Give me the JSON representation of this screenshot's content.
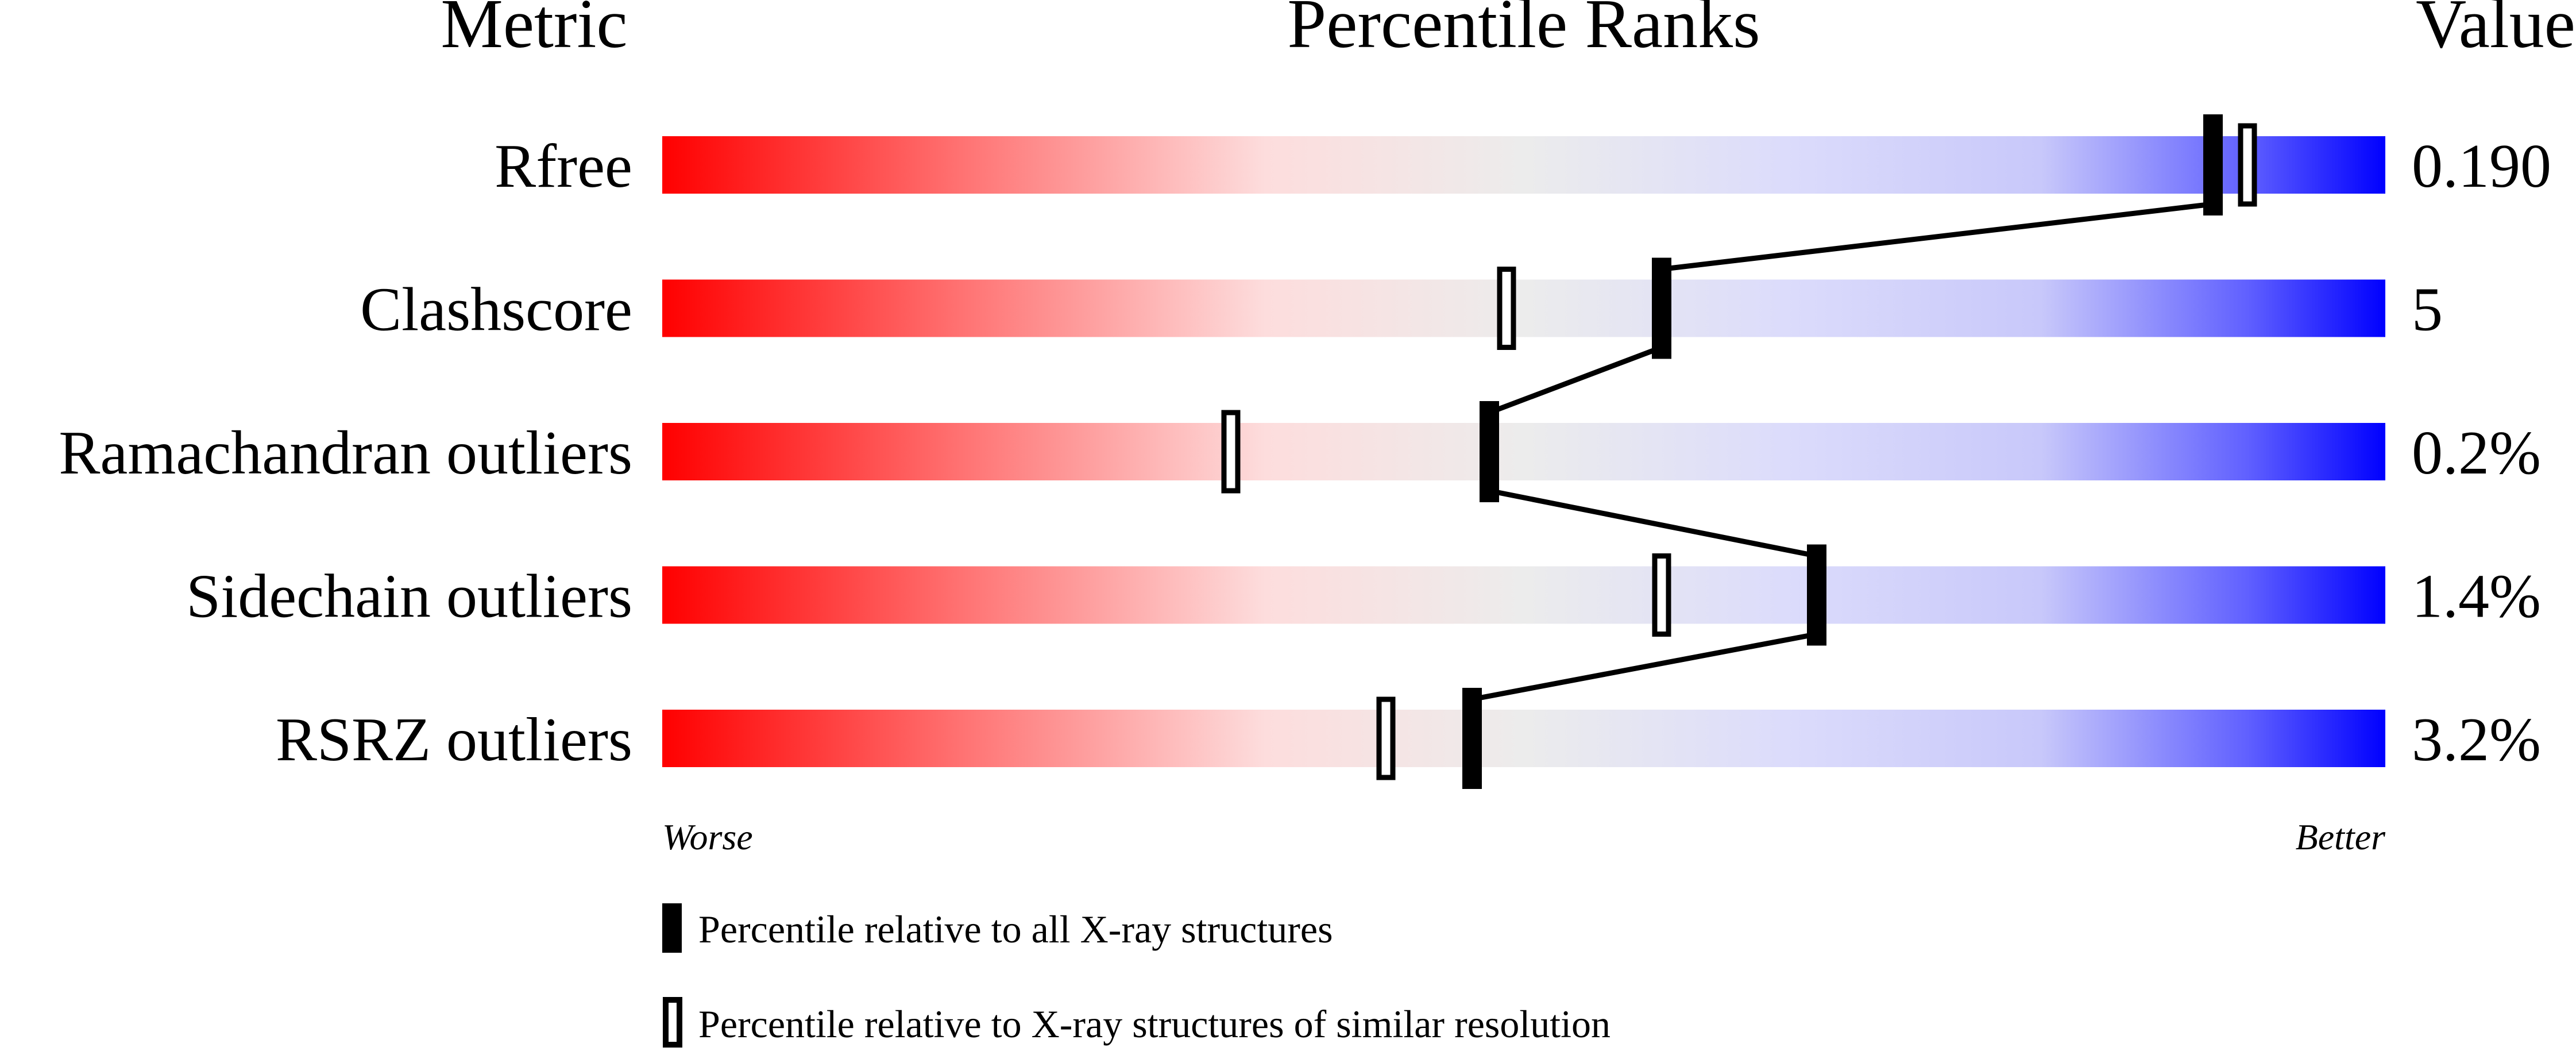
{
  "chart_data": {
    "type": "percentile-slider",
    "headers": {
      "metric": "Metric",
      "ranks": "Percentile Ranks",
      "value": "Value"
    },
    "xlim": [
      0,
      100
    ],
    "axis_labels": {
      "left": "Worse",
      "right": "Better"
    },
    "gradient_colors": [
      "#ff0000",
      "#fddddd",
      "#ececec",
      "#dcdcfb",
      "#0000ff"
    ],
    "rows": [
      {
        "metric": "Rfree",
        "value": "0.190",
        "percentile_all": 90,
        "percentile_similar": 92
      },
      {
        "metric": "Clashscore",
        "value": "5",
        "percentile_all": 58,
        "percentile_similar": 49
      },
      {
        "metric": "Ramachandran outliers",
        "value": "0.2%",
        "percentile_all": 48,
        "percentile_similar": 33
      },
      {
        "metric": "Sidechain outliers",
        "value": "1.4%",
        "percentile_all": 67,
        "percentile_similar": 58
      },
      {
        "metric": "RSRZ outliers",
        "value": "3.2%",
        "percentile_all": 47,
        "percentile_similar": 42
      }
    ],
    "legend": [
      {
        "marker": "filled",
        "label": "Percentile relative to all X-ray structures"
      },
      {
        "marker": "hollow",
        "label": "Percentile relative to X-ray structures of similar resolution"
      }
    ]
  }
}
